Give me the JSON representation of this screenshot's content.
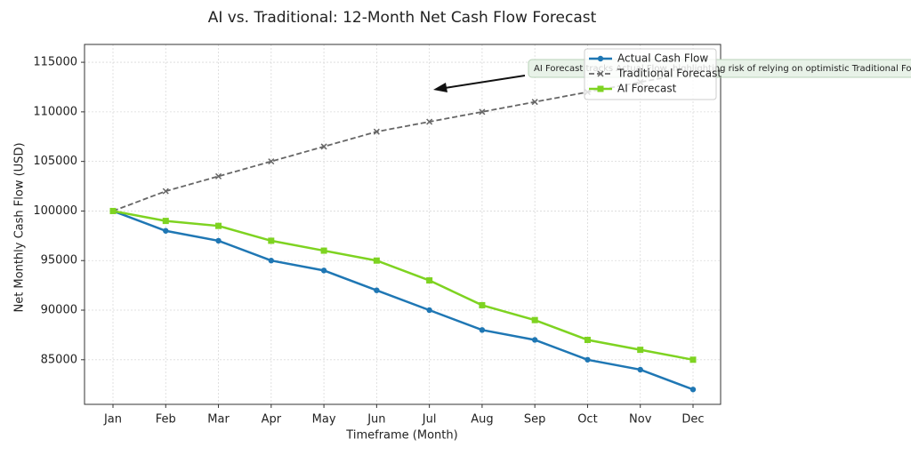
{
  "chart_data": {
    "type": "line",
    "title": "AI vs. Traditional: 12-Month Net Cash Flow Forecast",
    "x_label": "Timeframe (Month)",
    "y_label": "Net Monthly Cash Flow (USD)",
    "categories": [
      "Jan",
      "Feb",
      "Mar",
      "Apr",
      "May",
      "Jun",
      "Jul",
      "Aug",
      "Sep",
      "Oct",
      "Nov",
      "Dec"
    ],
    "series": [
      {
        "name": "Actual Cash Flow",
        "color": "#1f77b4",
        "marker": "circle",
        "dashed": false,
        "values": [
          100000,
          98000,
          97000,
          95000,
          94000,
          92000,
          90000,
          88000,
          87000,
          85000,
          84000,
          82000
        ]
      },
      {
        "name": "Traditional Forecast",
        "color": "#666666",
        "marker": "x",
        "dashed": true,
        "values": [
          100000,
          102000,
          103500,
          105000,
          106500,
          108000,
          109000,
          110000,
          111000,
          112000,
          113000,
          114000
        ]
      },
      {
        "name": "AI Forecast",
        "color": "#7ed321",
        "marker": "square",
        "dashed": false,
        "values": [
          100000,
          99000,
          98500,
          97000,
          96000,
          95000,
          93000,
          90500,
          89000,
          87000,
          86000,
          85000
        ]
      }
    ],
    "ylim": [
      80500,
      116800
    ],
    "yticks": [
      85000,
      90000,
      95000,
      100000,
      105000,
      110000,
      115000
    ],
    "grid": true,
    "legend": "upper right",
    "annotation": "AI Forecast tracks Actual Flow, highlighting risk of relying on optimistic Traditional Forecast"
  }
}
